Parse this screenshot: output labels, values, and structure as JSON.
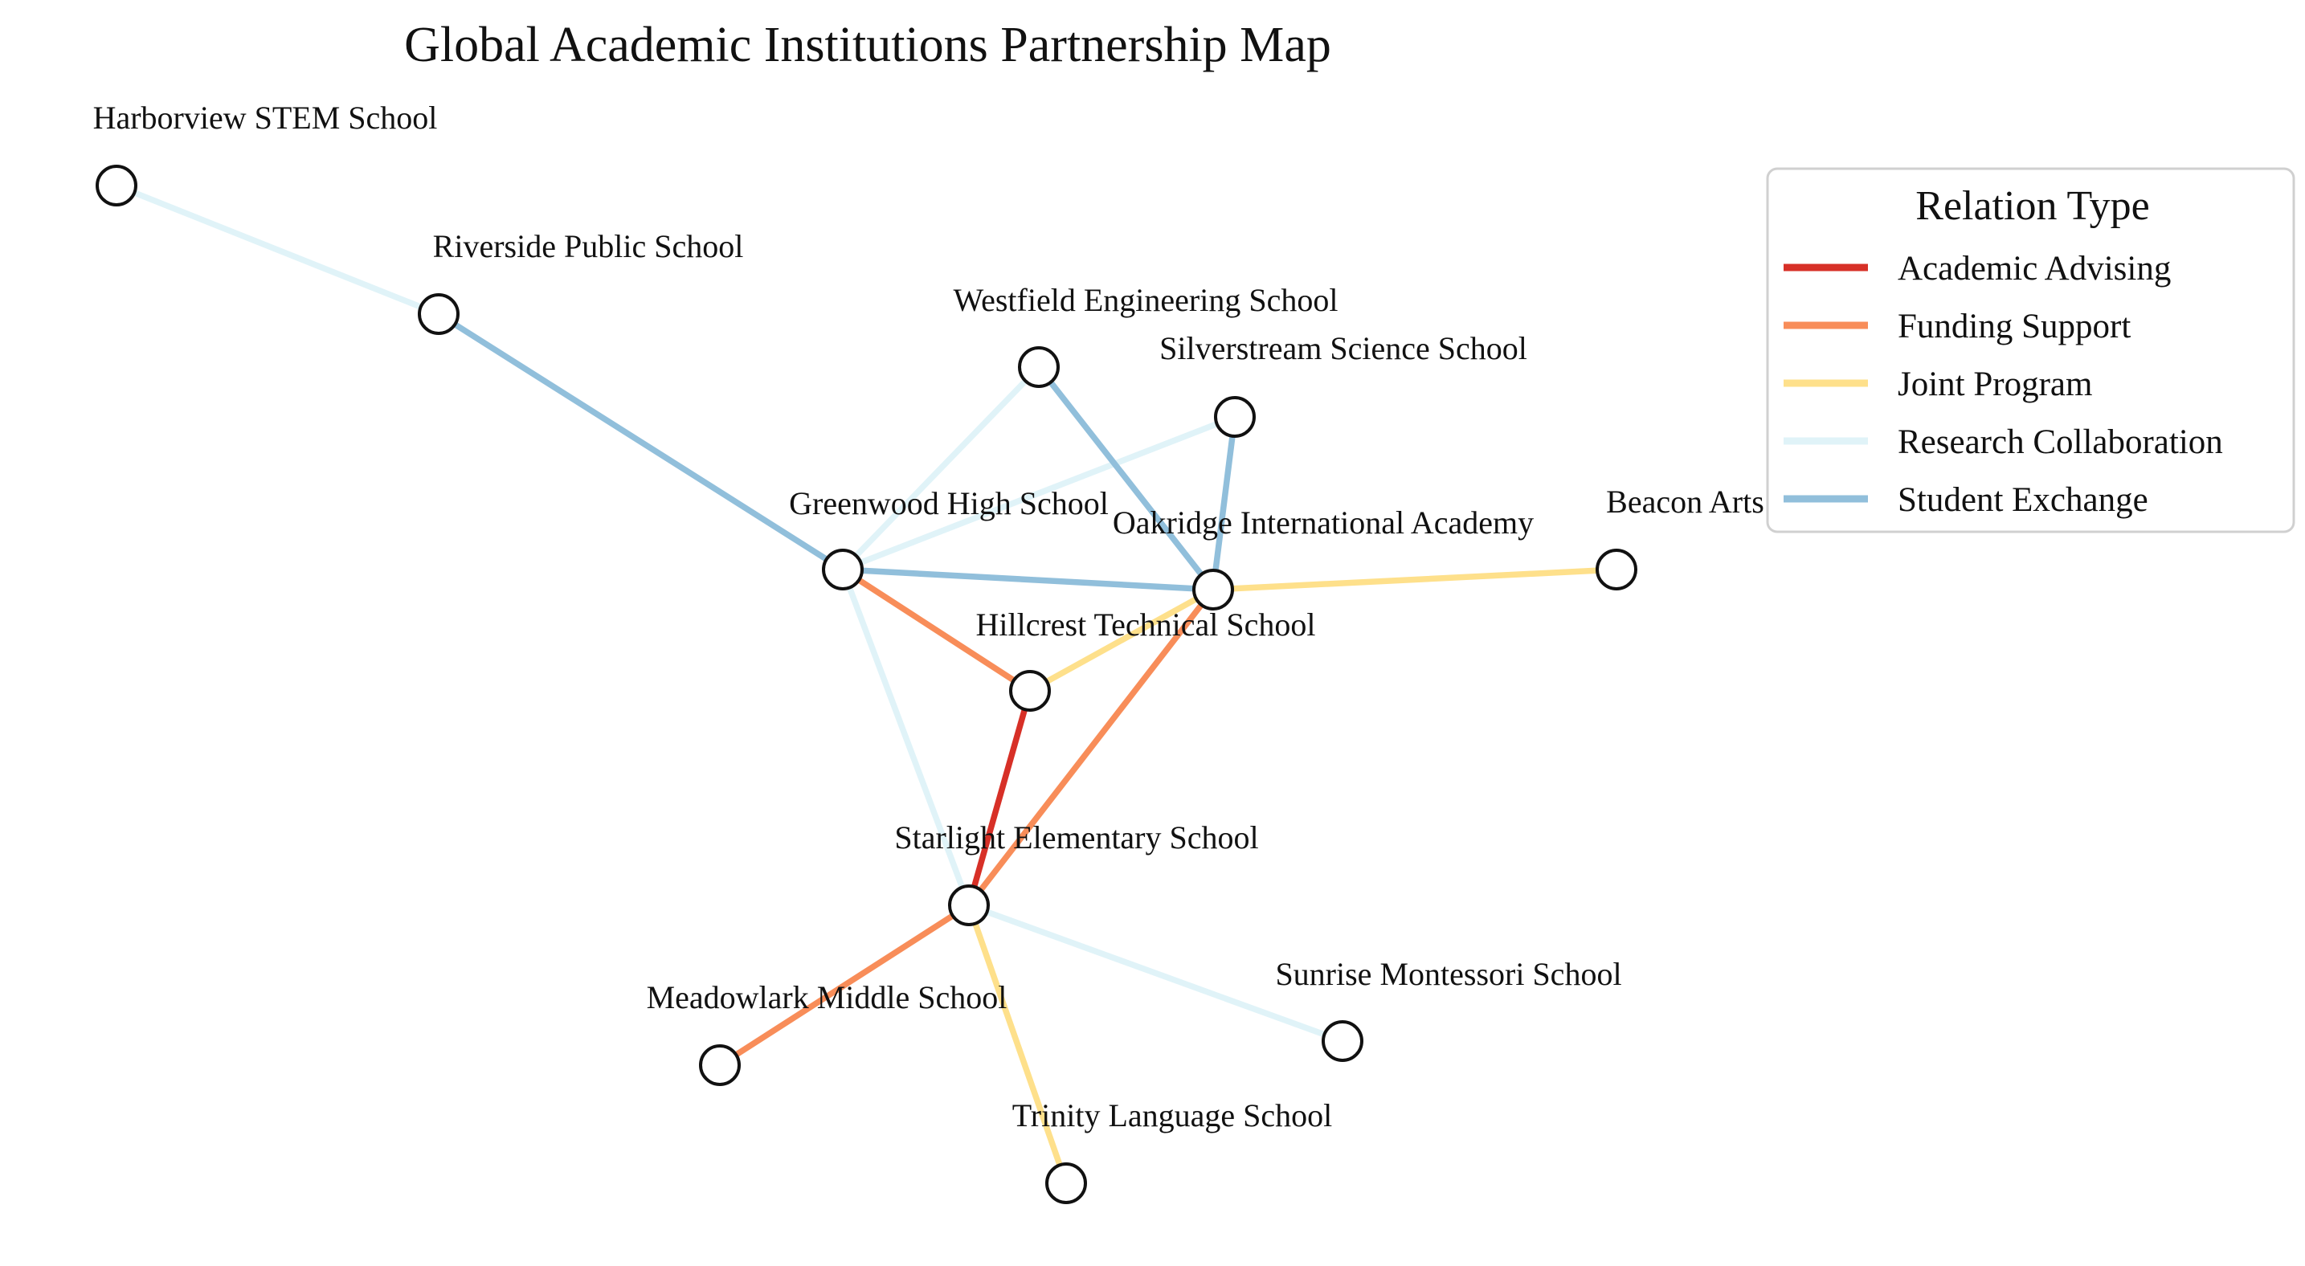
{
  "title": "Global Academic Institutions Partnership Map",
  "legend": {
    "title": "Relation Type",
    "items": [
      {
        "key": "academic_advising",
        "label": "Academic Advising",
        "color": "#d73027"
      },
      {
        "key": "funding_support",
        "label": "Funding Support",
        "color": "#f88d59"
      },
      {
        "key": "joint_program",
        "label": "Joint Program",
        "color": "#fee08b"
      },
      {
        "key": "research_collaboration",
        "label": "Research Collaboration",
        "color": "#e0f3f8"
      },
      {
        "key": "student_exchange",
        "label": "Student Exchange",
        "color": "#91bfdb"
      }
    ]
  },
  "nodes": [
    {
      "id": "harborview",
      "label": "Harborview STEM School"
    },
    {
      "id": "riverside",
      "label": "Riverside Public School"
    },
    {
      "id": "westfield",
      "label": "Westfield Engineering School"
    },
    {
      "id": "silverstream",
      "label": "Silverstream Science School"
    },
    {
      "id": "greenwood",
      "label": "Greenwood High School"
    },
    {
      "id": "oakridge",
      "label": "Oakridge International Academy"
    },
    {
      "id": "beacon",
      "label": "Beacon Arts Academy"
    },
    {
      "id": "hillcrest",
      "label": "Hillcrest Technical School"
    },
    {
      "id": "starlight",
      "label": "Starlight Elementary School"
    },
    {
      "id": "meadowlark",
      "label": "Meadowlark Middle School"
    },
    {
      "id": "sunrise",
      "label": "Sunrise Montessori School"
    },
    {
      "id": "trinity",
      "label": "Trinity Language School"
    }
  ],
  "edges": [
    {
      "source": "harborview",
      "target": "riverside",
      "type": "research_collaboration"
    },
    {
      "source": "riverside",
      "target": "greenwood",
      "type": "student_exchange"
    },
    {
      "source": "westfield",
      "target": "greenwood",
      "type": "research_collaboration"
    },
    {
      "source": "silverstream",
      "target": "greenwood",
      "type": "research_collaboration"
    },
    {
      "source": "greenwood",
      "target": "starlight",
      "type": "research_collaboration"
    },
    {
      "source": "starlight",
      "target": "sunrise",
      "type": "research_collaboration"
    },
    {
      "source": "greenwood",
      "target": "oakridge",
      "type": "student_exchange"
    },
    {
      "source": "westfield",
      "target": "oakridge",
      "type": "student_exchange"
    },
    {
      "source": "silverstream",
      "target": "oakridge",
      "type": "student_exchange"
    },
    {
      "source": "greenwood",
      "target": "hillcrest",
      "type": "funding_support"
    },
    {
      "source": "oakridge",
      "target": "starlight",
      "type": "funding_support"
    },
    {
      "source": "starlight",
      "target": "meadowlark",
      "type": "funding_support"
    },
    {
      "source": "oakridge",
      "target": "beacon",
      "type": "joint_program"
    },
    {
      "source": "hillcrest",
      "target": "oakridge",
      "type": "joint_program"
    },
    {
      "source": "starlight",
      "target": "trinity",
      "type": "joint_program"
    },
    {
      "source": "hillcrest",
      "target": "starlight",
      "type": "academic_advising"
    }
  ]
}
